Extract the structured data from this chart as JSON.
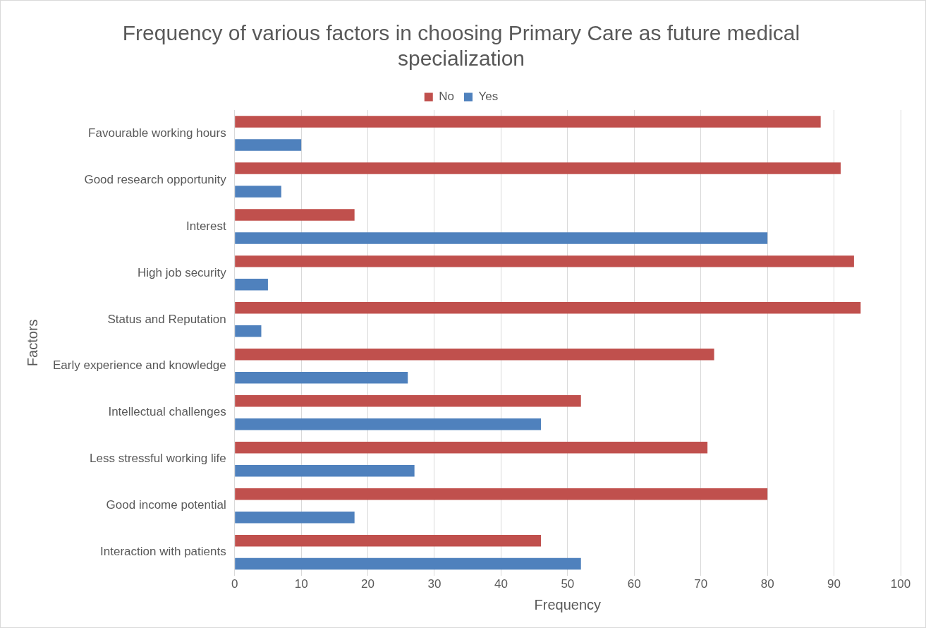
{
  "chart_data": {
    "type": "bar",
    "orientation": "horizontal",
    "title": "Frequency of various factors in choosing Primary Care as future medical specialization",
    "xlabel": "Frequency",
    "ylabel": "Factors",
    "categories": [
      "Favourable working hours",
      "Good research opportunity",
      "Interest",
      "High job security",
      "Status and Reputation",
      "Early experience and knowledge",
      "Intellectual challenges",
      "Less stressful working life",
      "Good income potential",
      "Interaction with patients"
    ],
    "series": [
      {
        "name": "No",
        "color": "#c0504d",
        "values": [
          88,
          91,
          18,
          93,
          94,
          72,
          52,
          71,
          80,
          46
        ]
      },
      {
        "name": "Yes",
        "color": "#4f81bd",
        "values": [
          10,
          7,
          80,
          5,
          4,
          26,
          46,
          27,
          18,
          52
        ]
      }
    ],
    "xlim": [
      0,
      100
    ],
    "xticks": [
      0,
      10,
      20,
      30,
      40,
      50,
      60,
      70,
      80,
      90,
      100
    ],
    "grid": "x",
    "legend": "top"
  }
}
